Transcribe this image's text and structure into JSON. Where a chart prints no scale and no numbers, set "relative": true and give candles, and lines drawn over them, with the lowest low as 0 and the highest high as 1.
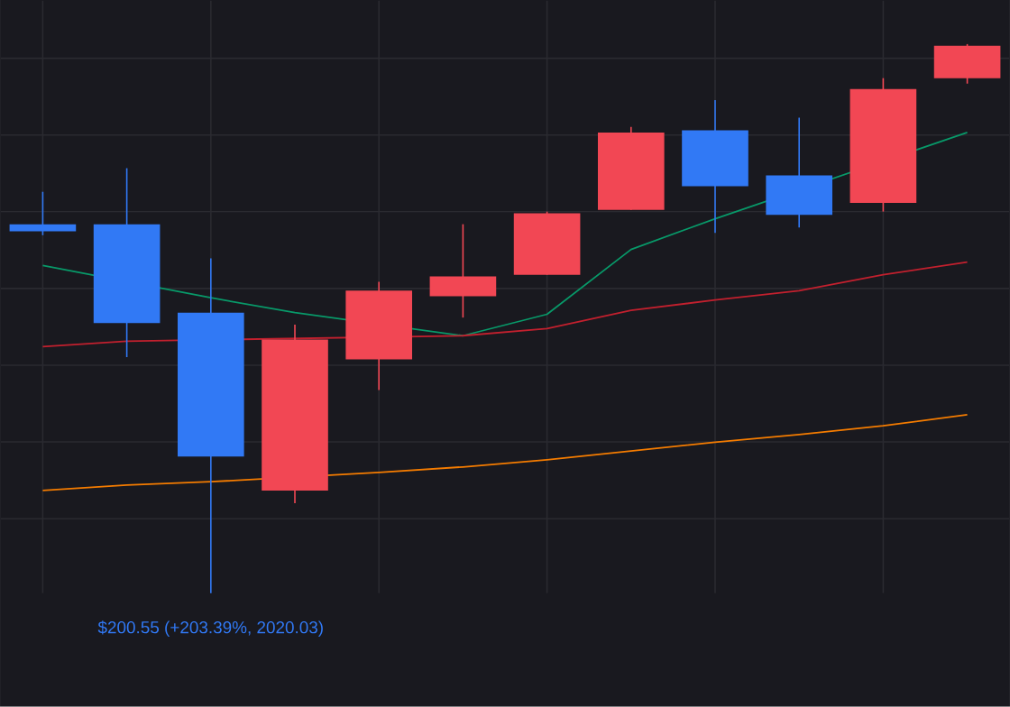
{
  "chart_data": {
    "type": "candlestick",
    "relative": true,
    "grid": true,
    "categories": [
      null,
      null,
      null,
      null,
      null,
      null,
      null,
      null,
      null,
      null,
      null,
      null
    ],
    "ohlc": [
      [
        0.672,
        0.731,
        0.652,
        0.659
      ],
      [
        0.672,
        0.774,
        0.43,
        0.492
      ],
      [
        0.511,
        0.61,
        0.0,
        0.249
      ],
      [
        0.187,
        0.489,
        0.164,
        0.462
      ],
      [
        0.426,
        0.567,
        0.37,
        0.551
      ],
      [
        0.541,
        0.672,
        0.502,
        0.577
      ],
      [
        0.58,
        0.695,
        0.58,
        0.692
      ],
      [
        0.698,
        0.849,
        0.698,
        0.839
      ],
      [
        0.843,
        0.898,
        0.656,
        0.741
      ],
      [
        0.761,
        0.866,
        0.666,
        0.689
      ],
      [
        0.711,
        0.938,
        0.695,
        0.918
      ],
      [
        0.938,
        1.0,
        0.928,
        0.997
      ]
    ],
    "colors": [
      "#3179f5",
      "#3179f5",
      "#3179f5",
      "#f24754",
      "#f24754",
      "#f24754",
      "#f24754",
      "#f24754",
      "#3179f5",
      "#3179f5",
      "#f24754",
      "#f24754"
    ],
    "series": [
      {
        "type": "line",
        "color": "#089969",
        "values": [
          0.597,
          null,
          0.538,
          0.511,
          null,
          0.469,
          0.508,
          0.626,
          0.682,
          null,
          null,
          0.839
        ]
      },
      {
        "type": "line",
        "color": "#c2202e",
        "values": [
          0.449,
          0.459,
          null,
          null,
          null,
          0.469,
          0.482,
          0.515,
          0.534,
          0.551,
          0.58,
          0.603
        ]
      },
      {
        "type": "line",
        "color": "#f57c00",
        "values": [
          0.187,
          0.197,
          0.203,
          null,
          0.22,
          0.23,
          0.243,
          0.259,
          0.275,
          0.289,
          0.305,
          0.325
        ]
      }
    ],
    "annotations": [
      "$200.55 (+203.39%, 2020.03)"
    ]
  }
}
